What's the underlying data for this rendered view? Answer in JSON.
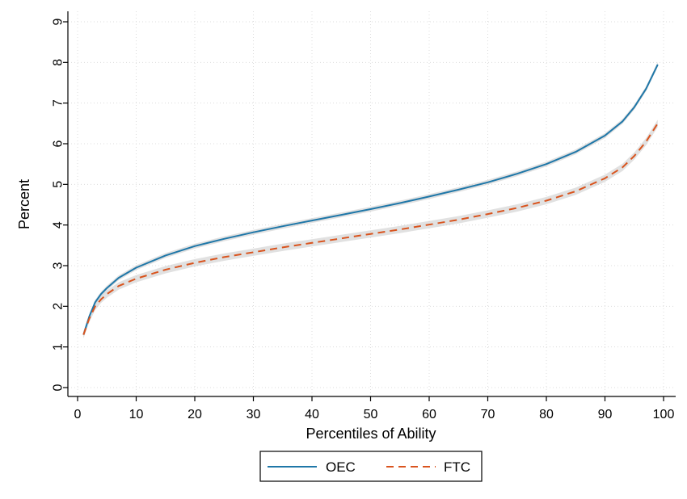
{
  "chart_data": {
    "type": "line",
    "title": "",
    "xlabel": "Percentiles of Ability",
    "ylabel": "Percent",
    "xlim": [
      0,
      100
    ],
    "ylim": [
      0,
      9
    ],
    "xticks": [
      0,
      10,
      20,
      30,
      40,
      50,
      60,
      70,
      80,
      90,
      100
    ],
    "yticks": [
      0,
      1,
      2,
      3,
      4,
      5,
      6,
      7,
      8,
      9
    ],
    "grid": true,
    "legend_position": "bottom",
    "confidence_band": true,
    "series": [
      {
        "name": "OEC",
        "color": "#1f77a8",
        "dash": "solid",
        "x": [
          1,
          2,
          3,
          4,
          5,
          7,
          10,
          15,
          20,
          25,
          30,
          35,
          40,
          45,
          50,
          55,
          60,
          65,
          70,
          75,
          80,
          85,
          90,
          93,
          95,
          97,
          99
        ],
        "y": [
          1.3,
          1.75,
          2.1,
          2.3,
          2.45,
          2.7,
          2.95,
          3.25,
          3.48,
          3.66,
          3.82,
          3.97,
          4.11,
          4.25,
          4.39,
          4.54,
          4.7,
          4.87,
          5.05,
          5.26,
          5.5,
          5.8,
          6.2,
          6.55,
          6.9,
          7.35,
          7.95
        ]
      },
      {
        "name": "FTC",
        "color": "#d9541e",
        "dash": "dashed",
        "x": [
          1,
          2,
          3,
          4,
          5,
          7,
          10,
          15,
          20,
          25,
          30,
          35,
          40,
          45,
          50,
          55,
          60,
          65,
          70,
          75,
          80,
          85,
          90,
          93,
          95,
          97,
          99
        ],
        "y": [
          1.3,
          1.7,
          2.0,
          2.17,
          2.3,
          2.5,
          2.68,
          2.9,
          3.07,
          3.21,
          3.33,
          3.45,
          3.56,
          3.67,
          3.78,
          3.89,
          4.01,
          4.13,
          4.27,
          4.42,
          4.6,
          4.83,
          5.15,
          5.42,
          5.7,
          6.05,
          6.5
        ]
      }
    ]
  }
}
